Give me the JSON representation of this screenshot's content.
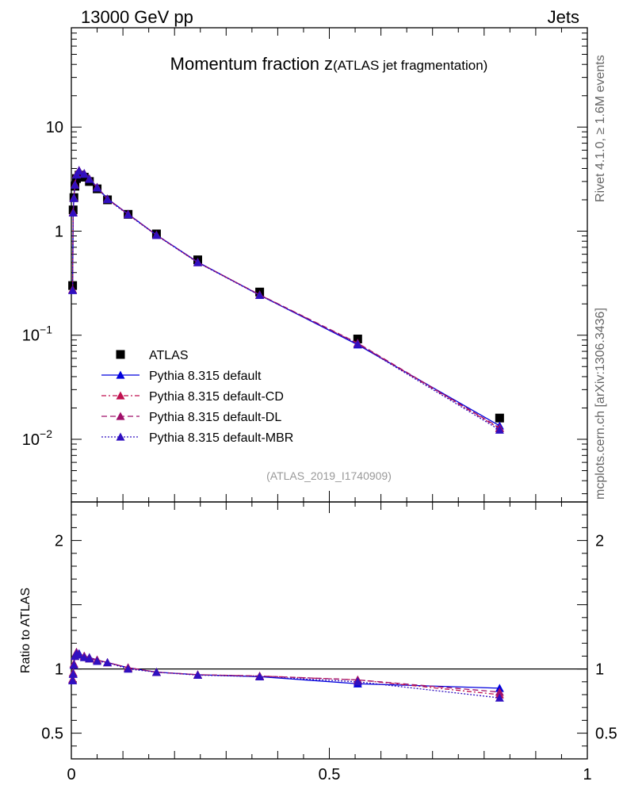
{
  "header": {
    "left": "13000 GeV pp",
    "right": "Jets"
  },
  "side_labels": {
    "rivet": "Rivet 4.1.0, ≥ 1.6M events",
    "mcplots": "mcplots.cern.ch [arXiv:1306.3436]"
  },
  "colors": {
    "atlas": "#000000",
    "default": "#0000dd",
    "cd": "#c0104f",
    "dl": "#a0106a",
    "mbr": "#3010c0"
  },
  "chart_data": [
    {
      "type": "line",
      "title_main": "Momentum fraction z",
      "title_sub": "(ATLAS jet fragmentation)",
      "watermark": "(ATLAS_2019_I1740909)",
      "yscale": "log",
      "xlim": [
        0,
        1
      ],
      "ylim": [
        0.0025,
        90
      ],
      "yticks": [
        {
          "value": 10,
          "label": "10"
        },
        {
          "value": 1,
          "label": "1"
        },
        {
          "value": 0.1,
          "label": "10",
          "exp": "−1"
        },
        {
          "value": 0.01,
          "label": "10",
          "exp": "−2"
        }
      ],
      "legend_position": "lower-left",
      "x": [
        0.0025,
        0.0035,
        0.005,
        0.007,
        0.01,
        0.015,
        0.025,
        0.035,
        0.05,
        0.07,
        0.11,
        0.165,
        0.245,
        0.365,
        0.555,
        0.83
      ],
      "series": [
        {
          "key": "atlas",
          "name": "ATLAS",
          "style": "data",
          "values": [
            0.3,
            1.6,
            2.1,
            2.7,
            3.2,
            3.45,
            3.3,
            3.0,
            2.55,
            2.0,
            1.45,
            0.94,
            0.53,
            0.26,
            0.092,
            0.016
          ]
        },
        {
          "key": "default",
          "name": "Pythia 8.315 default",
          "style": "solid",
          "values": [
            0.27,
            1.5,
            2.1,
            2.8,
            3.5,
            3.85,
            3.6,
            3.2,
            2.65,
            2.05,
            1.46,
            0.92,
            0.505,
            0.243,
            0.081,
            0.0135
          ]
        },
        {
          "key": "cd",
          "name": "Pythia 8.315 default-CD",
          "style": "dash-dot",
          "values": [
            0.275,
            1.52,
            2.08,
            2.82,
            3.52,
            3.8,
            3.55,
            3.18,
            2.63,
            2.03,
            1.45,
            0.915,
            0.5,
            0.244,
            0.083,
            0.0127
          ]
        },
        {
          "key": "dl",
          "name": "Pythia 8.315 default-DL",
          "style": "dash",
          "values": [
            0.275,
            1.51,
            2.09,
            2.8,
            3.5,
            3.82,
            3.56,
            3.19,
            2.64,
            2.04,
            1.455,
            0.918,
            0.502,
            0.245,
            0.084,
            0.0129
          ]
        },
        {
          "key": "mbr",
          "name": "Pythia 8.315 default-MBR",
          "style": "dot",
          "values": [
            0.27,
            1.5,
            2.07,
            2.78,
            3.48,
            3.78,
            3.53,
            3.16,
            2.61,
            2.02,
            1.44,
            0.912,
            0.499,
            0.242,
            0.082,
            0.0123
          ]
        }
      ]
    },
    {
      "type": "line",
      "ylabel": "Ratio to ATLAS",
      "xlim": [
        0,
        1
      ],
      "ylim": [
        0.3,
        2.3
      ],
      "xticks": [
        {
          "value": 0,
          "label": "0"
        },
        {
          "value": 0.5,
          "label": "0.5"
        },
        {
          "value": 1,
          "label": "1"
        }
      ],
      "yticks": [
        {
          "value": 2,
          "label": "2"
        },
        {
          "value": 1,
          "label": "1"
        },
        {
          "value": 0.5,
          "label": "0.5"
        }
      ],
      "reference_line": 1,
      "x": [
        0.0025,
        0.0035,
        0.005,
        0.007,
        0.01,
        0.015,
        0.025,
        0.035,
        0.05,
        0.07,
        0.11,
        0.165,
        0.245,
        0.365,
        0.555,
        0.83
      ],
      "series": [
        {
          "key": "default",
          "name": "Pythia 8.315 default",
          "style": "solid",
          "values": [
            0.91,
            0.96,
            1.03,
            1.1,
            1.13,
            1.12,
            1.1,
            1.09,
            1.07,
            1.05,
            1.01,
            0.975,
            0.955,
            0.94,
            0.885,
            0.85
          ]
        },
        {
          "key": "cd",
          "name": "Pythia 8.315 default-CD",
          "style": "dash-dot",
          "values": [
            0.92,
            0.97,
            1.04,
            1.1,
            1.13,
            1.11,
            1.1,
            1.08,
            1.07,
            1.05,
            1.01,
            0.975,
            0.955,
            0.945,
            0.915,
            0.8
          ]
        },
        {
          "key": "dl",
          "name": "Pythia 8.315 default-DL",
          "style": "dash",
          "values": [
            0.92,
            0.97,
            1.04,
            1.1,
            1.13,
            1.11,
            1.1,
            1.085,
            1.07,
            1.05,
            1.01,
            0.975,
            0.955,
            0.945,
            0.915,
            0.82
          ]
        },
        {
          "key": "mbr",
          "name": "Pythia 8.315 default-MBR",
          "style": "dot",
          "values": [
            0.91,
            0.96,
            1.03,
            1.1,
            1.12,
            1.11,
            1.09,
            1.08,
            1.06,
            1.05,
            1.0,
            0.975,
            0.952,
            0.94,
            0.9,
            0.775
          ]
        }
      ]
    }
  ]
}
